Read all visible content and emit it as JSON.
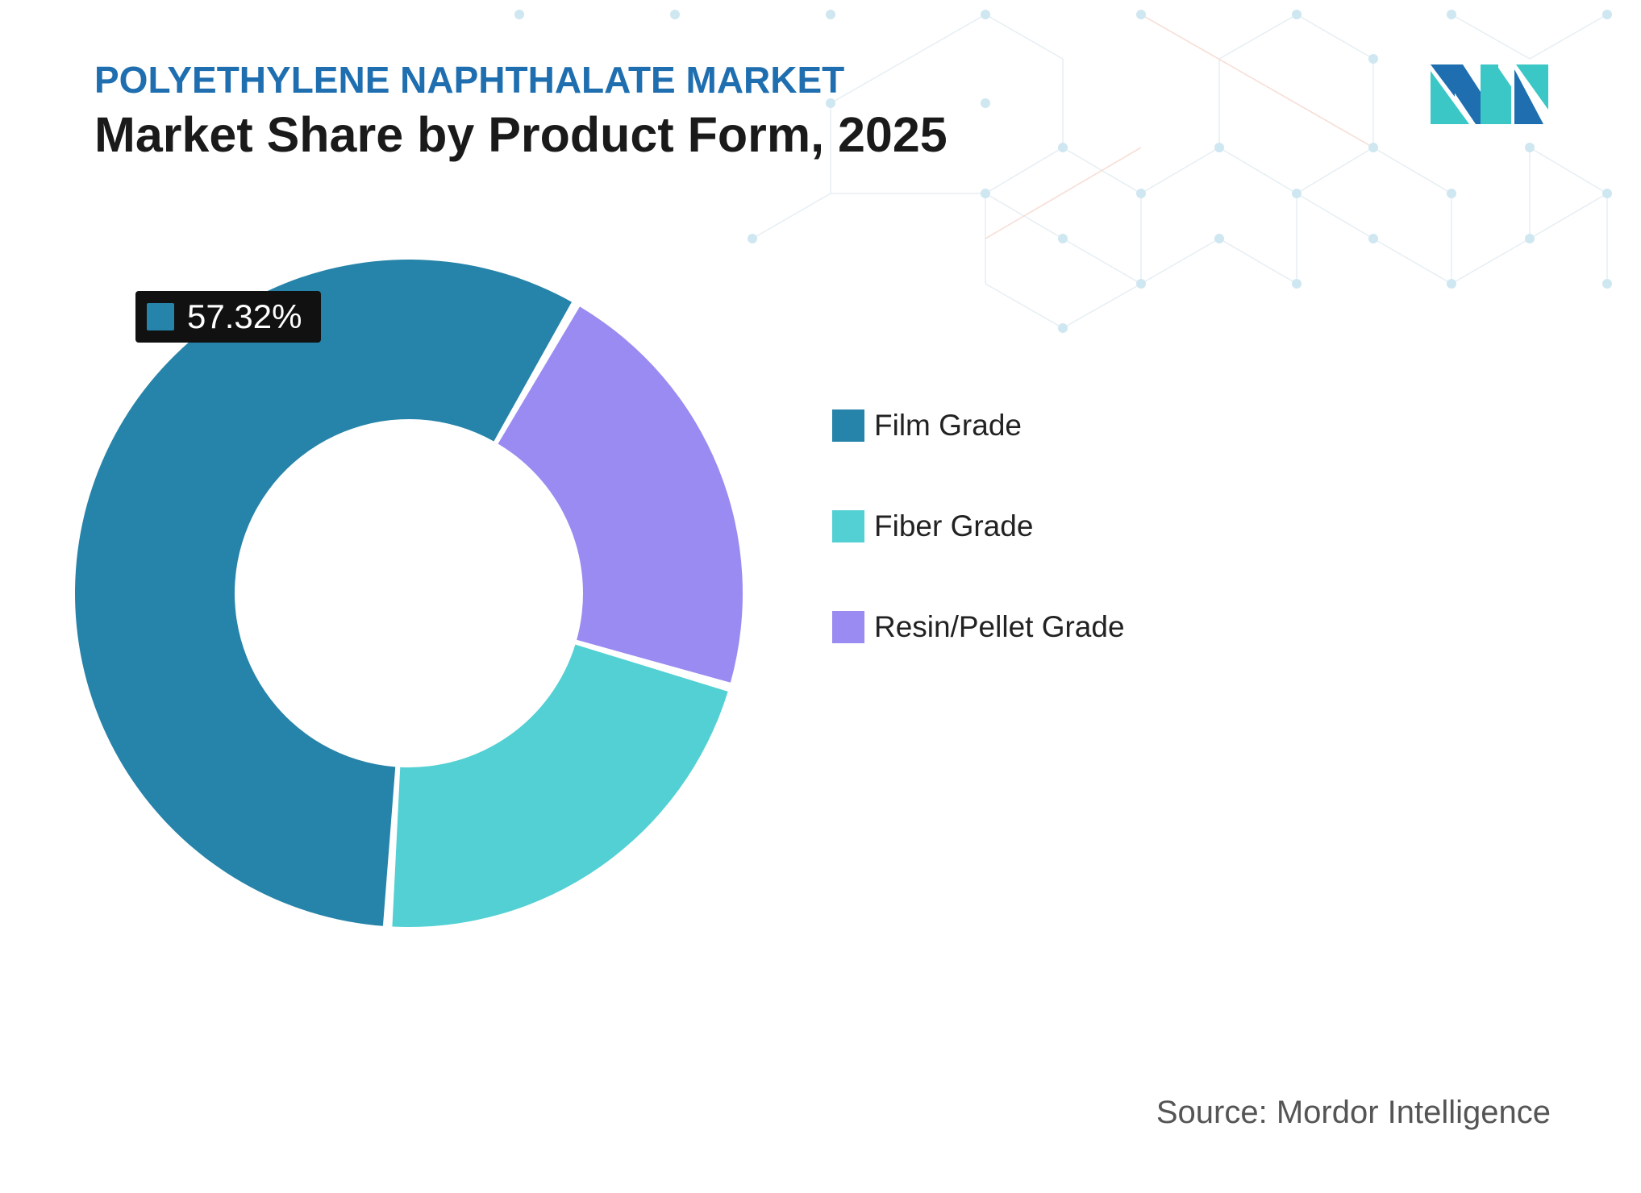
{
  "header": {
    "kicker": "POLYETHYLENE NAPHTHALATE MARKET",
    "title": "Market Share by Product Form, 2025"
  },
  "logo": {
    "icon": "mordor-intelligence-logo-icon",
    "colors": [
      "#1f6fb0",
      "#3cc7c7"
    ]
  },
  "chart_data": {
    "type": "pie",
    "subtype": "donut",
    "title": "Market Share by Product Form, 2025",
    "categories": [
      "Film Grade",
      "Fiber Grade",
      "Resin/Pellet Grade"
    ],
    "values": [
      57.32,
      21.48,
      21.2
    ],
    "unit": "%",
    "colors": [
      "#2683a9",
      "#52d0d3",
      "#998bf1"
    ],
    "data_labels": [
      {
        "category": "Film Grade",
        "text": "57.32%"
      }
    ],
    "legend": {
      "placement": "right",
      "entries": [
        "Film Grade",
        "Fiber Grade",
        "Resin/Pellet Grade"
      ]
    }
  },
  "footer": {
    "source": "Source: Mordor Intelligence"
  }
}
